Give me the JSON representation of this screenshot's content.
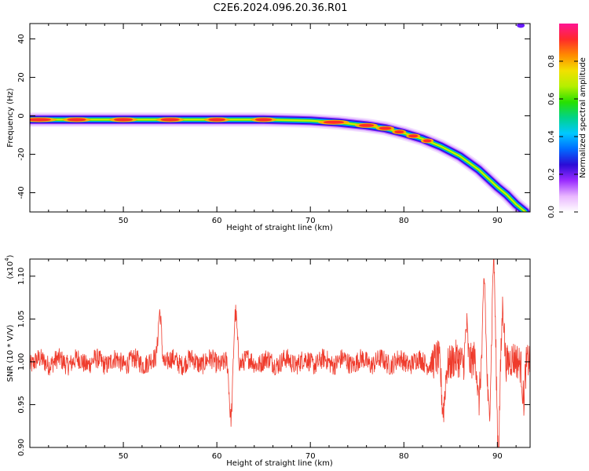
{
  "title": "C2E6.2024.096.20.36.R01",
  "chart_data": [
    {
      "type": "heatmap",
      "xlabel": "Height of straight line (km)",
      "ylabel": "Frequency (Hz)",
      "xlim": [
        40,
        93.5
      ],
      "ylim": [
        -50,
        48
      ],
      "xticks": [
        50,
        60,
        70,
        80,
        90
      ],
      "yticks": [
        -40,
        -20,
        0,
        20,
        40
      ],
      "colorbar": {
        "label": "Normalized spectral amplitude",
        "range": [
          0,
          1
        ],
        "ticks": [
          "0.0",
          "0.2",
          "0.4",
          "0.6",
          "0.8"
        ],
        "colors": [
          "#ffffff",
          "#e9b7ff",
          "#9a2cff",
          "#2b0bd6",
          "#006bff",
          "#00c8ff",
          "#00d38a",
          "#27e000",
          "#b4ef00",
          "#f2e000",
          "#ff8a00",
          "#ff2a2a",
          "#ff1493"
        ]
      },
      "ridge": [
        {
          "x": 40,
          "y": -2
        },
        {
          "x": 50,
          "y": -2
        },
        {
          "x": 60,
          "y": -2
        },
        {
          "x": 65,
          "y": -2
        },
        {
          "x": 70,
          "y": -2.5
        },
        {
          "x": 73,
          "y": -3.5
        },
        {
          "x": 76,
          "y": -5
        },
        {
          "x": 78,
          "y": -6.5
        },
        {
          "x": 80,
          "y": -9
        },
        {
          "x": 82,
          "y": -12
        },
        {
          "x": 84,
          "y": -16
        },
        {
          "x": 86,
          "y": -21
        },
        {
          "x": 88,
          "y": -28
        },
        {
          "x": 90,
          "y": -37
        },
        {
          "x": 91,
          "y": -41
        },
        {
          "x": 92,
          "y": -46
        },
        {
          "x": 93,
          "y": -50
        }
      ]
    },
    {
      "type": "line",
      "xlabel": "Height of straight line (km)",
      "ylabel": "SNR (10 * V/V)",
      "y_multiplier": "(x10",
      "y_multiplier_exp": "4",
      "xlim": [
        40,
        93.5
      ],
      "ylim": [
        0.9,
        1.12
      ],
      "xticks": [
        50,
        60,
        70,
        80,
        90
      ],
      "yticks": [
        "0.90",
        "0.95",
        "1.00",
        "1.05",
        "1.10"
      ],
      "color": "#ef3b2c",
      "features": [
        {
          "x": 53.9,
          "y": 1.06
        },
        {
          "x": 61.5,
          "y": 0.93
        },
        {
          "x": 62.0,
          "y": 1.06
        },
        {
          "x": 84.2,
          "y": 0.945
        },
        {
          "x": 86.7,
          "y": 1.045
        },
        {
          "x": 88.0,
          "y": 0.95
        },
        {
          "x": 88.6,
          "y": 1.1
        },
        {
          "x": 89.1,
          "y": 0.94
        },
        {
          "x": 89.6,
          "y": 1.12
        },
        {
          "x": 90.1,
          "y": 0.9
        },
        {
          "x": 90.6,
          "y": 1.07
        },
        {
          "x": 92.8,
          "y": 0.96
        }
      ]
    }
  ]
}
